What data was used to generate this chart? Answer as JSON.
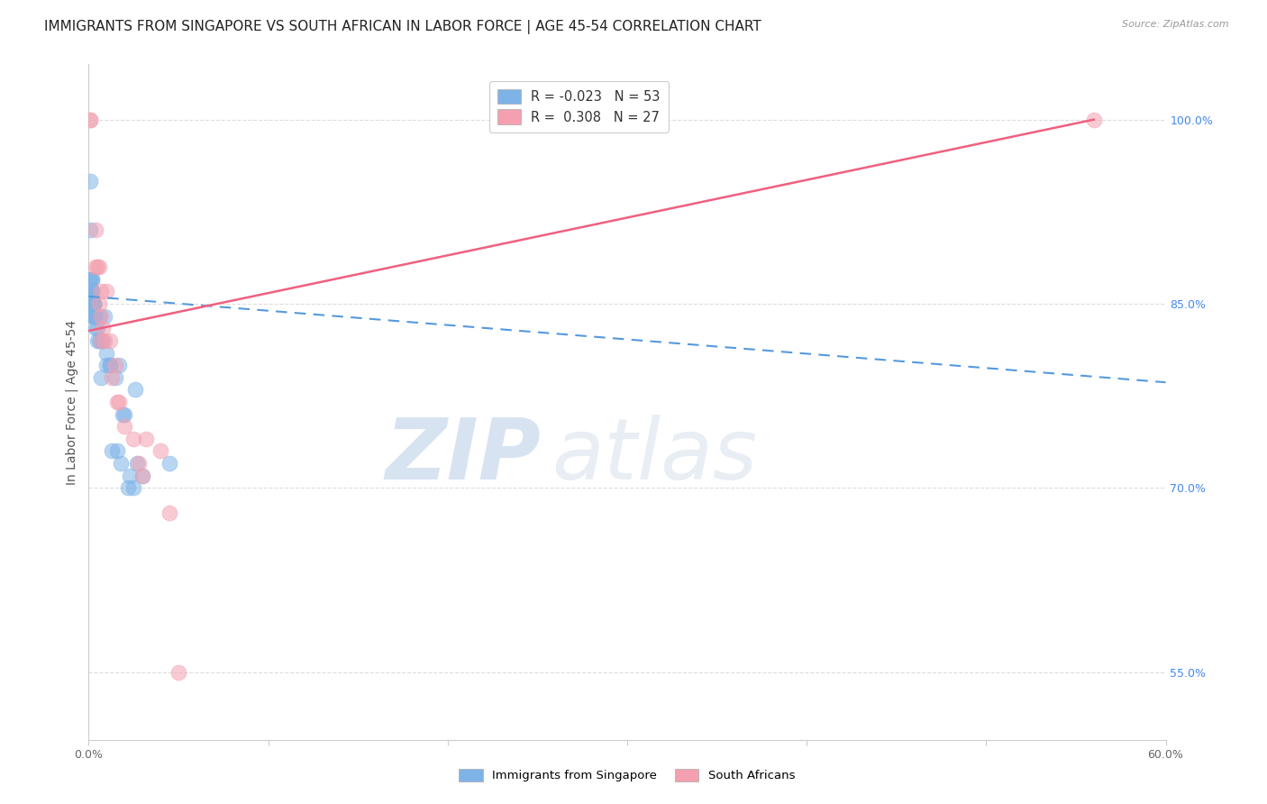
{
  "title": "IMMIGRANTS FROM SINGAPORE VS SOUTH AFRICAN IN LABOR FORCE | AGE 45-54 CORRELATION CHART",
  "source": "Source: ZipAtlas.com",
  "xlabel": "",
  "ylabel": "In Labor Force | Age 45-54",
  "xlim": [
    0.0,
    0.6
  ],
  "ylim": [
    0.495,
    1.045
  ],
  "xticks": [
    0.0,
    0.1,
    0.2,
    0.3,
    0.4,
    0.5,
    0.6
  ],
  "xticklabels": [
    "0.0%",
    "",
    "",
    "",
    "",
    "",
    "60.0%"
  ],
  "yticks_right": [
    0.55,
    0.7,
    0.85,
    1.0
  ],
  "yticklabels_right": [
    "55.0%",
    "70.0%",
    "85.0%",
    "100.0%"
  ],
  "yticks_grid": [
    0.55,
    0.7,
    0.85,
    1.0
  ],
  "singapore_color": "#7EB3E8",
  "southafrica_color": "#F4A0B0",
  "singapore_R": -0.023,
  "singapore_N": 53,
  "southafrica_R": 0.308,
  "southafrica_N": 27,
  "legend_label_singapore": "Immigrants from Singapore",
  "legend_label_southafrica": "South Africans",
  "watermark_zip": "ZIP",
  "watermark_atlas": "atlas",
  "singapore_x": [
    0.001,
    0.001,
    0.001,
    0.001,
    0.001,
    0.002,
    0.002,
    0.002,
    0.002,
    0.002,
    0.002,
    0.002,
    0.002,
    0.002,
    0.002,
    0.003,
    0.003,
    0.003,
    0.003,
    0.003,
    0.003,
    0.003,
    0.003,
    0.003,
    0.003,
    0.004,
    0.004,
    0.005,
    0.005,
    0.006,
    0.006,
    0.007,
    0.007,
    0.008,
    0.009,
    0.01,
    0.01,
    0.012,
    0.012,
    0.013,
    0.015,
    0.016,
    0.017,
    0.018,
    0.019,
    0.02,
    0.022,
    0.023,
    0.025,
    0.026,
    0.027,
    0.03,
    0.045
  ],
  "singapore_y": [
    0.95,
    0.91,
    0.87,
    0.87,
    0.86,
    0.87,
    0.87,
    0.86,
    0.86,
    0.86,
    0.86,
    0.85,
    0.85,
    0.85,
    0.85,
    0.85,
    0.85,
    0.85,
    0.85,
    0.85,
    0.85,
    0.84,
    0.84,
    0.84,
    0.84,
    0.84,
    0.83,
    0.83,
    0.82,
    0.84,
    0.82,
    0.82,
    0.79,
    0.82,
    0.84,
    0.8,
    0.81,
    0.8,
    0.8,
    0.73,
    0.79,
    0.73,
    0.8,
    0.72,
    0.76,
    0.76,
    0.7,
    0.71,
    0.7,
    0.78,
    0.72,
    0.71,
    0.72
  ],
  "southafrica_x": [
    0.001,
    0.001,
    0.004,
    0.004,
    0.005,
    0.006,
    0.006,
    0.007,
    0.007,
    0.007,
    0.008,
    0.009,
    0.01,
    0.012,
    0.013,
    0.015,
    0.016,
    0.017,
    0.02,
    0.025,
    0.028,
    0.03,
    0.032,
    0.04,
    0.045,
    0.05,
    0.56
  ],
  "southafrica_y": [
    1.0,
    1.0,
    0.91,
    0.88,
    0.88,
    0.88,
    0.85,
    0.86,
    0.84,
    0.82,
    0.83,
    0.82,
    0.86,
    0.82,
    0.79,
    0.8,
    0.77,
    0.77,
    0.75,
    0.74,
    0.72,
    0.71,
    0.74,
    0.73,
    0.68,
    0.55,
    1.0
  ],
  "background_color": "#ffffff",
  "grid_color": "#dddddd",
  "title_fontsize": 11,
  "axis_label_fontsize": 10,
  "tick_fontsize": 9,
  "trend_sg_x0": 0.0,
  "trend_sg_x1": 0.6,
  "trend_sg_y0": 0.856,
  "trend_sg_y1": 0.786,
  "trend_sa_x0": 0.0,
  "trend_sa_x1": 0.56,
  "trend_sa_y0": 0.828,
  "trend_sa_y1": 1.0
}
